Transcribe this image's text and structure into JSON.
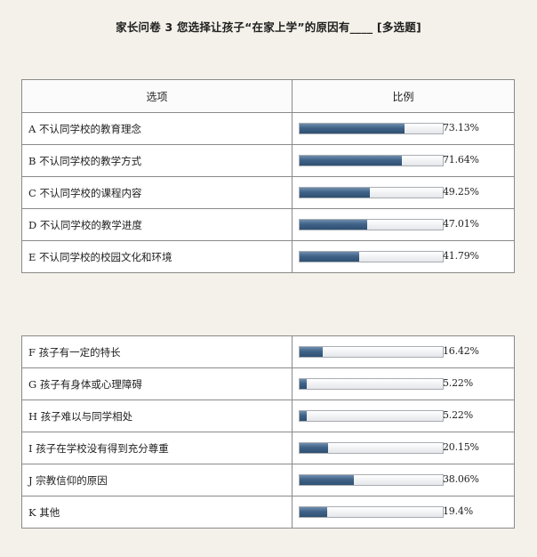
{
  "title": "家长问卷 3  您选择让孩子“在家上学”的原因有____  [多选题]",
  "table1": {
    "header": {
      "option": "选项",
      "ratio": "比例"
    },
    "rows": [
      {
        "option": "A  不认同学校的教育理念",
        "percent": "73.13%",
        "value": 73.13
      },
      {
        "option": "B  不认同学校的教学方式",
        "percent": "71.64%",
        "value": 71.64
      },
      {
        "option": "C  不认同学校的课程内容",
        "percent": "49.25%",
        "value": 49.25
      },
      {
        "option": "D  不认同学校的教学进度",
        "percent": "47.01%",
        "value": 47.01
      },
      {
        "option": "E  不认同学校的校园文化和环境",
        "percent": "41.79%",
        "value": 41.79
      }
    ]
  },
  "table2": {
    "rows": [
      {
        "option": "F    孩子有一定的特长",
        "percent": "16.42%",
        "value": 16.42
      },
      {
        "option": "G    孩子有身体或心理障碍",
        "percent": "5.22%",
        "value": 5.22
      },
      {
        "option": "H  孩子难以与同学相处",
        "percent": "5.22%",
        "value": 5.22
      },
      {
        "option": "I    孩子在学校没有得到充分尊重",
        "percent": "20.15%",
        "value": 20.15
      },
      {
        "option": "J  宗教信仰的原因",
        "percent": "38.06%",
        "value": 38.06
      },
      {
        "option": "K  其他",
        "percent": "19.4%",
        "value": 19.4
      }
    ]
  }
}
